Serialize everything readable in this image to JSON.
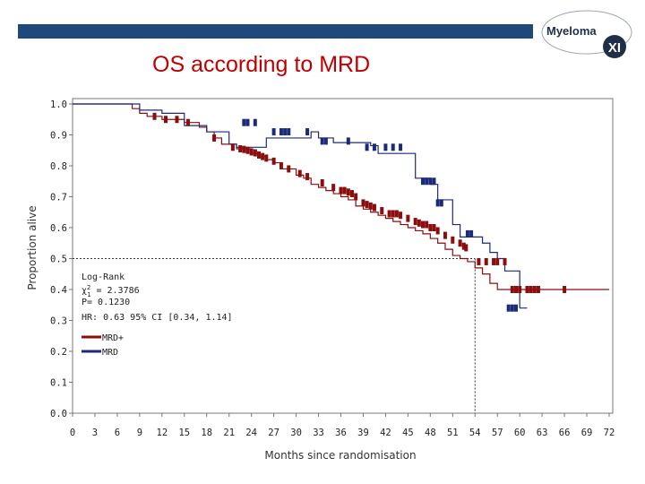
{
  "slide": {
    "title": "OS according to MRD",
    "logo_text": "Myeloma",
    "logo_badge": "XI",
    "accent_color": "#1f497d",
    "title_color": "#c00000"
  },
  "chart_data": {
    "type": "line",
    "subtype": "kaplan-meier",
    "title": "OS according to MRD",
    "xlabel": "Months since randomisation",
    "ylabel": "Proportion alive",
    "xlim": [
      0,
      72
    ],
    "ylim": [
      0,
      1
    ],
    "xticks": [
      0,
      3,
      6,
      9,
      12,
      15,
      18,
      21,
      24,
      27,
      30,
      33,
      36,
      39,
      42,
      45,
      48,
      51,
      54,
      57,
      60,
      63,
      66,
      69,
      72
    ],
    "yticks": [
      "0.0",
      "0.1",
      "0.2",
      "0.3",
      "0.4",
      "0.5",
      "0.6",
      "0.7",
      "0.8",
      "0.9",
      "1.0"
    ],
    "median_line": {
      "y": 0.5,
      "x": 54
    },
    "annotation": {
      "test": "Log-Rank",
      "chi_label": "χ",
      "chi_sup": "2",
      "chi_sub": "1",
      "chi_value": "= 2.3786",
      "p": "P= 0.1230",
      "hr": "HR: 0.63 95% CI [0.34, 1.14]"
    },
    "series": [
      {
        "name": "MRD+",
        "color": "#8b0d0d",
        "steps": [
          [
            0,
            1.0
          ],
          [
            8,
            0.985
          ],
          [
            9,
            0.97
          ],
          [
            10,
            0.96
          ],
          [
            12,
            0.95
          ],
          [
            15,
            0.94
          ],
          [
            17,
            0.925
          ],
          [
            18,
            0.91
          ],
          [
            19,
            0.89
          ],
          [
            20,
            0.87
          ],
          [
            22,
            0.855
          ],
          [
            24,
            0.84
          ],
          [
            25,
            0.83
          ],
          [
            26,
            0.82
          ],
          [
            27,
            0.81
          ],
          [
            28,
            0.79
          ],
          [
            30,
            0.77
          ],
          [
            31,
            0.76
          ],
          [
            32,
            0.74
          ],
          [
            33,
            0.73
          ],
          [
            34,
            0.72
          ],
          [
            35,
            0.71
          ],
          [
            36,
            0.7
          ],
          [
            37,
            0.69
          ],
          [
            38,
            0.67
          ],
          [
            39,
            0.66
          ],
          [
            40,
            0.65
          ],
          [
            41,
            0.64
          ],
          [
            42,
            0.63
          ],
          [
            43,
            0.62
          ],
          [
            44,
            0.61
          ],
          [
            45,
            0.6
          ],
          [
            46,
            0.59
          ],
          [
            47,
            0.58
          ],
          [
            48,
            0.565
          ],
          [
            49,
            0.55
          ],
          [
            50,
            0.53
          ],
          [
            51,
            0.51
          ],
          [
            52,
            0.5
          ],
          [
            53,
            0.49
          ],
          [
            54,
            0.47
          ],
          [
            55,
            0.45
          ],
          [
            56,
            0.42
          ],
          [
            57,
            0.4
          ],
          [
            72,
            0.4
          ]
        ],
        "censor": [
          [
            11,
            0.96
          ],
          [
            12.5,
            0.95
          ],
          [
            14,
            0.95
          ],
          [
            15.5,
            0.94
          ],
          [
            19,
            0.89
          ],
          [
            21.5,
            0.86
          ],
          [
            22.5,
            0.855
          ],
          [
            23,
            0.853
          ],
          [
            23.5,
            0.85
          ],
          [
            24,
            0.845
          ],
          [
            24.5,
            0.842
          ],
          [
            25,
            0.835
          ],
          [
            25.5,
            0.83
          ],
          [
            26,
            0.825
          ],
          [
            27,
            0.815
          ],
          [
            28,
            0.8
          ],
          [
            29,
            0.79
          ],
          [
            30.5,
            0.775
          ],
          [
            31.5,
            0.765
          ],
          [
            33.5,
            0.745
          ],
          [
            35,
            0.73
          ],
          [
            36,
            0.72
          ],
          [
            36.5,
            0.72
          ],
          [
            37,
            0.715
          ],
          [
            37.5,
            0.71
          ],
          [
            38,
            0.7
          ],
          [
            39,
            0.68
          ],
          [
            39.5,
            0.675
          ],
          [
            40,
            0.67
          ],
          [
            40.5,
            0.665
          ],
          [
            41.5,
            0.655
          ],
          [
            42.5,
            0.645
          ],
          [
            43,
            0.645
          ],
          [
            43.5,
            0.645
          ],
          [
            44,
            0.64
          ],
          [
            45,
            0.63
          ],
          [
            46,
            0.62
          ],
          [
            46.5,
            0.615
          ],
          [
            47,
            0.61
          ],
          [
            47.5,
            0.61
          ],
          [
            48,
            0.6
          ],
          [
            48.5,
            0.6
          ],
          [
            49,
            0.59
          ],
          [
            50,
            0.575
          ],
          [
            51,
            0.56
          ],
          [
            52,
            0.55
          ],
          [
            52.5,
            0.54
          ],
          [
            52.8,
            0.535
          ],
          [
            54.5,
            0.49
          ],
          [
            55.5,
            0.49
          ],
          [
            56.5,
            0.49
          ],
          [
            57,
            0.49
          ],
          [
            58,
            0.49
          ],
          [
            59,
            0.4
          ],
          [
            59.5,
            0.4
          ],
          [
            60,
            0.4
          ],
          [
            61,
            0.4
          ],
          [
            61.5,
            0.4
          ],
          [
            62,
            0.4
          ],
          [
            62.5,
            0.4
          ],
          [
            66,
            0.4
          ]
        ]
      },
      {
        "name": "MRD",
        "color": "#1c2a7a",
        "steps": [
          [
            0,
            1.0
          ],
          [
            9,
            0.98
          ],
          [
            12,
            0.97
          ],
          [
            15,
            0.93
          ],
          [
            18,
            0.91
          ],
          [
            21,
            0.87
          ],
          [
            22,
            0.86
          ],
          [
            24,
            0.86
          ],
          [
            26,
            0.89
          ],
          [
            30,
            0.89
          ],
          [
            32,
            0.91
          ],
          [
            33,
            0.89
          ],
          [
            35,
            0.875
          ],
          [
            40,
            0.865
          ],
          [
            41,
            0.84
          ],
          [
            45,
            0.84
          ],
          [
            46,
            0.76
          ],
          [
            48,
            0.74
          ],
          [
            49,
            0.69
          ],
          [
            50,
            0.69
          ],
          [
            51,
            0.61
          ],
          [
            52,
            0.57
          ],
          [
            54,
            0.57
          ],
          [
            55,
            0.55
          ],
          [
            56,
            0.52
          ],
          [
            57,
            0.5
          ],
          [
            58,
            0.46
          ],
          [
            59,
            0.46
          ],
          [
            60,
            0.34
          ],
          [
            61,
            0.34
          ]
        ],
        "censor": [
          [
            23,
            0.94
          ],
          [
            23.5,
            0.94
          ],
          [
            24.5,
            0.94
          ],
          [
            27,
            0.91
          ],
          [
            28,
            0.91
          ],
          [
            28.5,
            0.91
          ],
          [
            29,
            0.91
          ],
          [
            31.5,
            0.91
          ],
          [
            33.5,
            0.88
          ],
          [
            34,
            0.88
          ],
          [
            37,
            0.88
          ],
          [
            39.5,
            0.86
          ],
          [
            40.5,
            0.86
          ],
          [
            42,
            0.86
          ],
          [
            43,
            0.86
          ],
          [
            44,
            0.86
          ],
          [
            47,
            0.75
          ],
          [
            47.5,
            0.75
          ],
          [
            48,
            0.75
          ],
          [
            48.5,
            0.75
          ],
          [
            49,
            0.68
          ],
          [
            49.5,
            0.68
          ],
          [
            53,
            0.58
          ],
          [
            53.5,
            0.58
          ],
          [
            58.5,
            0.34
          ],
          [
            59,
            0.34
          ],
          [
            59.5,
            0.34
          ]
        ]
      }
    ]
  }
}
